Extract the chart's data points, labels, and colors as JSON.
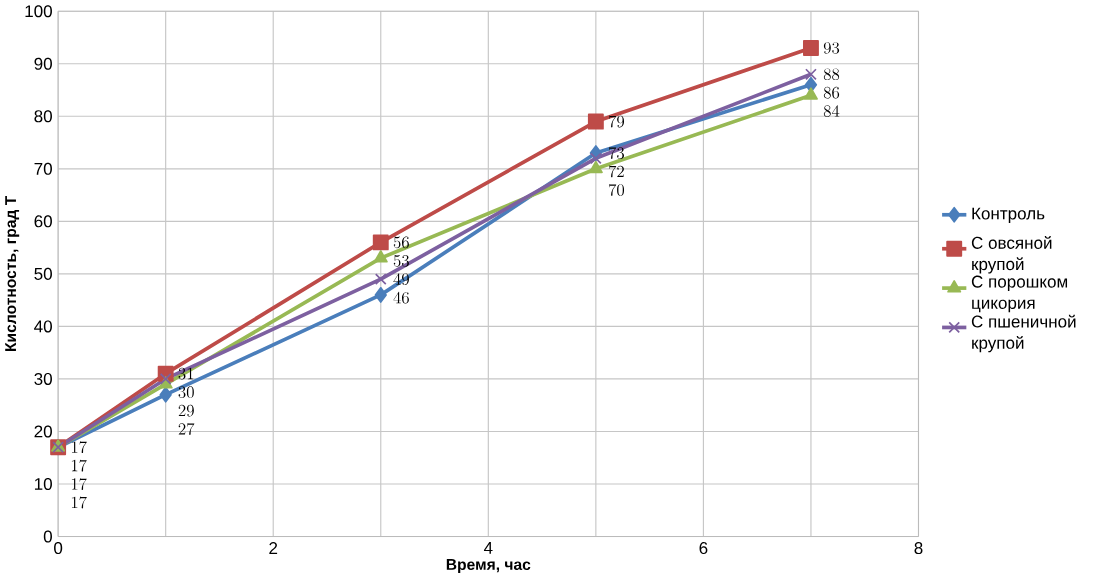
{
  "chart_data": {
    "type": "line",
    "xlabel": "Время, час",
    "ylabel": "Кислотность, град Т",
    "x": [
      0,
      1,
      3,
      5,
      7
    ],
    "series": [
      {
        "name": "Контроль",
        "color": "#4a7ebb",
        "marker": "diamond",
        "values": [
          17,
          27,
          46,
          73,
          86
        ]
      },
      {
        "name": "С овсяной крупой",
        "color": "#be4b48",
        "marker": "square",
        "values": [
          17,
          31,
          56,
          79,
          93
        ]
      },
      {
        "name": "С порошком цикория",
        "color": "#98b954",
        "marker": "triangle",
        "values": [
          17,
          29,
          53,
          70,
          84
        ]
      },
      {
        "name": "С пшеничной крупой",
        "color": "#7d60a0",
        "marker": "cross",
        "values": [
          17,
          30,
          49,
          72,
          88
        ]
      }
    ],
    "xlim": [
      0,
      8
    ],
    "ylim": [
      0,
      100
    ],
    "xticks": [
      0,
      {
        "value": 1,
        "label": null
      },
      2,
      {
        "value": 3,
        "label": null
      },
      4,
      {
        "value": 5,
        "label": null
      },
      6,
      {
        "value": 7,
        "label": null
      },
      8
    ],
    "yticks": [
      0,
      10,
      20,
      30,
      40,
      50,
      60,
      70,
      80,
      90,
      100
    ],
    "grid": true,
    "legend": "right",
    "data_labels": true,
    "line_style": "solid"
  }
}
